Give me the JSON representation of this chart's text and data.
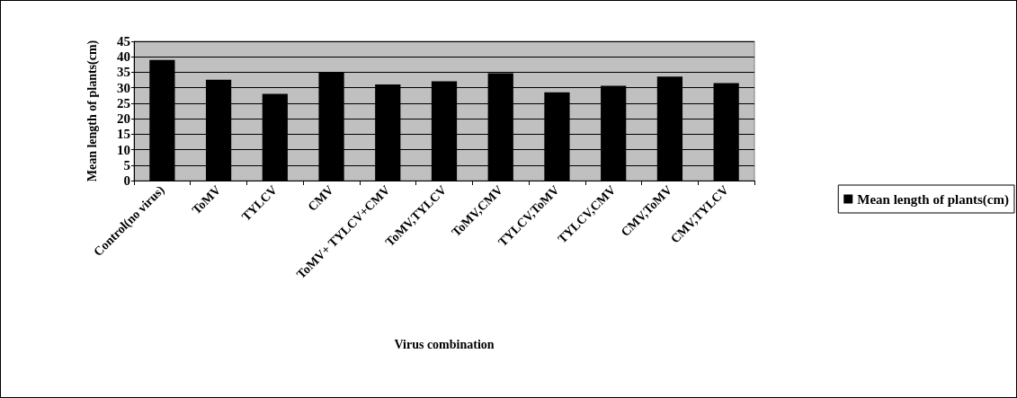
{
  "chart_data": {
    "type": "bar",
    "xlabel": "Virus combination",
    "ylabel": "Mean length of plants(cm)",
    "categories": [
      "Control(no virus)",
      "ToMV",
      "TYLCV",
      "CMV",
      "ToMV+ TYLCV+CMV",
      "ToMV,TYLCV",
      "ToMV,CMV",
      "TYLCV,ToMV",
      "TYLCV,CMV",
      "CMV,ToMV",
      "CMV,TYLCV"
    ],
    "series": [
      {
        "name": "Mean length of plants(cm)",
        "color": "#000000",
        "values": [
          39.0,
          32.6,
          28.0,
          35.1,
          31.1,
          32.1,
          34.7,
          28.5,
          30.6,
          33.6,
          31.5
        ]
      }
    ],
    "ylim": [
      0,
      45
    ],
    "yticks": [
      0,
      5,
      10,
      15,
      20,
      25,
      30,
      35,
      40,
      45
    ],
    "grid": "y",
    "legend": "right"
  }
}
